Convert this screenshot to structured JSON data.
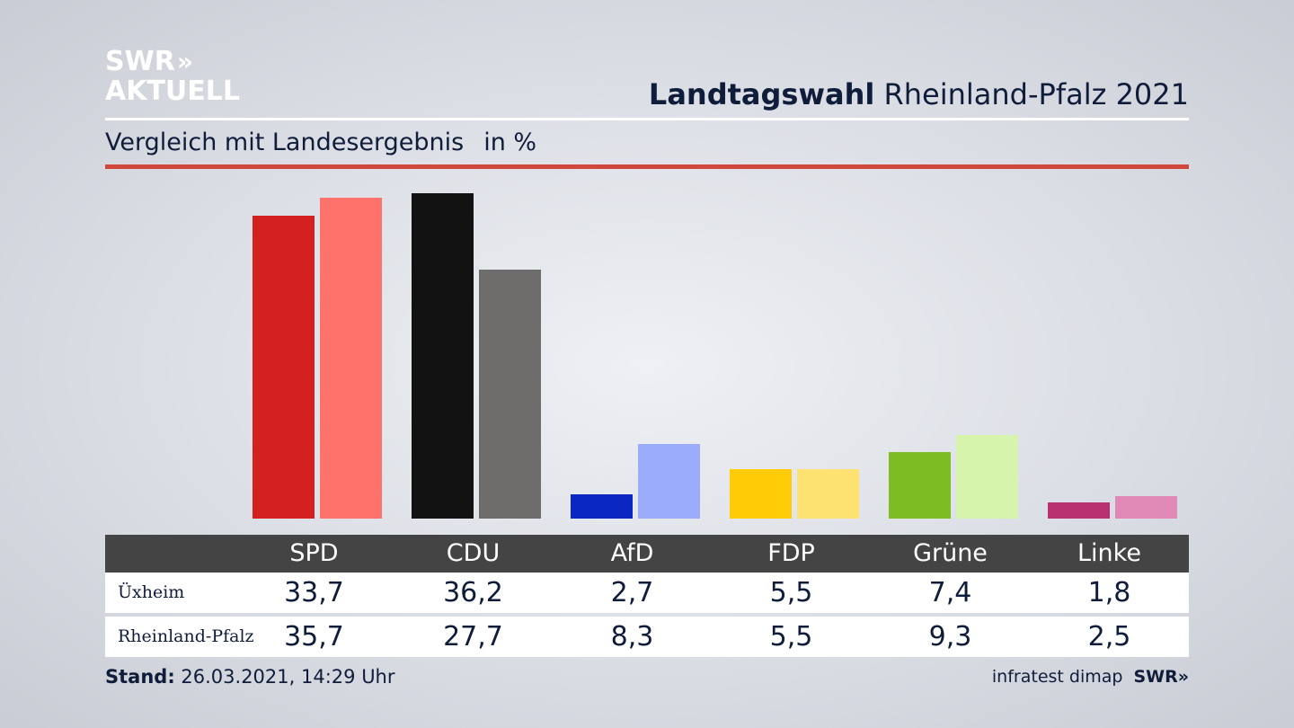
{
  "logo": {
    "line1": "SWR",
    "line2": "AKTUELL",
    "chevrons": "»"
  },
  "header": {
    "title_bold": "Landtagswahl",
    "title_rest": "Rheinland-Pfalz 2021"
  },
  "subtitle": {
    "text": "Vergleich mit Landesergebnis",
    "unit": "in %"
  },
  "colors": {
    "accent_rule": "#d0473b",
    "table_header": "#444444"
  },
  "chart_data": {
    "type": "bar",
    "categories": [
      "SPD",
      "CDU",
      "AfD",
      "FDP",
      "Grüne",
      "Linke"
    ],
    "series": [
      {
        "name": "Üxheim",
        "values": [
          33.7,
          36.2,
          2.7,
          5.5,
          7.4,
          1.8
        ],
        "colors": [
          "#d42020",
          "#121212",
          "#0a27c4",
          "#ffcc07",
          "#7dbd23",
          "#b8306f"
        ]
      },
      {
        "name": "Rheinland-Pfalz",
        "values": [
          35.7,
          27.7,
          8.3,
          5.5,
          9.3,
          2.5
        ],
        "colors": [
          "#ff726c",
          "#6e6d6b",
          "#9bacfb",
          "#fde272",
          "#d6f4ac",
          "#e089b7"
        ]
      }
    ],
    "title": "",
    "xlabel": "",
    "ylabel": "",
    "ylim": [
      0,
      36.2
    ],
    "grid": false,
    "legend": "table-below"
  },
  "table": {
    "headers": [
      "SPD",
      "CDU",
      "AfD",
      "FDP",
      "Grüne",
      "Linke"
    ],
    "rows": [
      {
        "label": "Üxheim",
        "values": [
          "33,7",
          "36,2",
          "2,7",
          "5,5",
          "7,4",
          "1,8"
        ]
      },
      {
        "label": "Rheinland-Pfalz",
        "values": [
          "35,7",
          "27,7",
          "8,3",
          "5,5",
          "9,3",
          "2,5"
        ]
      }
    ]
  },
  "footer": {
    "stand_label": "Stand:",
    "stand_value": "26.03.2021, 14:29 Uhr",
    "source": "infratest dimap",
    "brand": "SWR»"
  }
}
